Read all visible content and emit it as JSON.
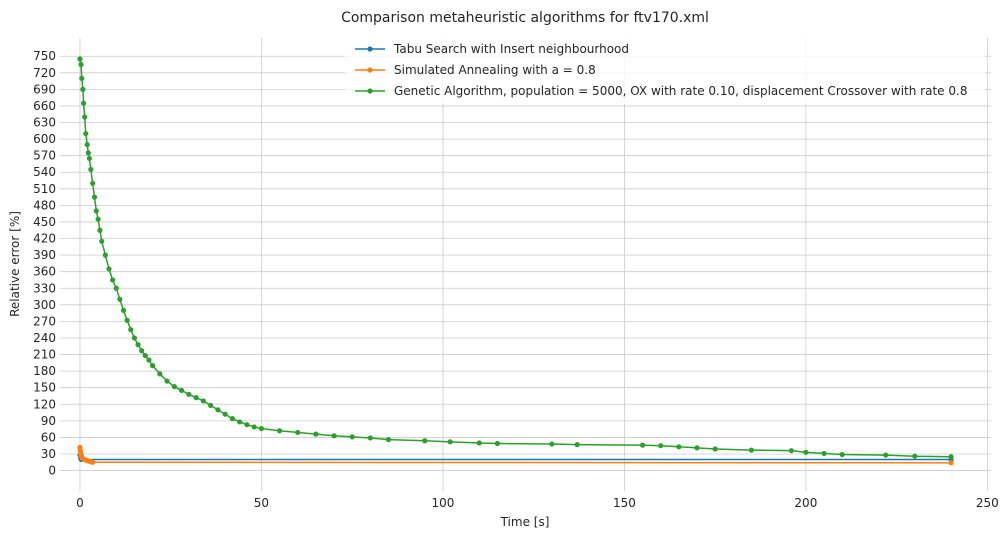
{
  "chart_data": {
    "type": "line",
    "title": "Comparison metaheuristic algorithms for ftv170.xml",
    "xlabel": "Time [s]",
    "ylabel": "Relative error [%]",
    "xlim": [
      -5.5,
      251
    ],
    "ylim": [
      -37,
      783
    ],
    "xticks": [
      0,
      50,
      100,
      150,
      200,
      250
    ],
    "yticks": [
      0,
      30,
      60,
      90,
      120,
      150,
      180,
      210,
      240,
      270,
      300,
      330,
      360,
      390,
      420,
      450,
      480,
      510,
      540,
      570,
      600,
      630,
      660,
      690,
      720,
      750
    ],
    "grid": true,
    "legend_position": "top-center",
    "series": [
      {
        "name": "Tabu Search with Insert neighbourhood",
        "color": "#1f77b4",
        "x": [
          0,
          0.2,
          0.4,
          240
        ],
        "y": [
          28,
          22,
          20,
          20
        ]
      },
      {
        "name": "Simulated Annealing with a = 0.8",
        "color": "#ff7f0e",
        "x": [
          0,
          0.1,
          0.2,
          0.3,
          0.4,
          0.5,
          0.7,
          1.0,
          1.3,
          1.6,
          2.0,
          2.5,
          3.0,
          3.5,
          240
        ],
        "y": [
          42,
          36,
          31,
          28,
          26,
          24,
          22,
          21,
          20,
          19,
          18,
          17,
          16,
          15,
          14
        ]
      },
      {
        "name": "Genetic Algorithm, population = 5000, OX with rate 0.10, displacement Crossover with rate 0.8",
        "color": "#2ca02c",
        "x": [
          0,
          0.3,
          0.5,
          0.8,
          1.0,
          1.3,
          1.6,
          2.0,
          2.3,
          2.6,
          3.0,
          3.5,
          4.0,
          4.5,
          5.0,
          5.5,
          6.0,
          7.0,
          8.0,
          9.0,
          10,
          11,
          12,
          13,
          14,
          15,
          16,
          17,
          18,
          19,
          20,
          22,
          24,
          26,
          28,
          30,
          32,
          34,
          36,
          38,
          40,
          42,
          44,
          46,
          48,
          50,
          55,
          60,
          65,
          70,
          75,
          80,
          85,
          95,
          102,
          110,
          115,
          130,
          137,
          155,
          160,
          165,
          170,
          175,
          185,
          196,
          200,
          205,
          210,
          222,
          230,
          240
        ],
        "y": [
          745,
          735,
          710,
          690,
          665,
          640,
          610,
          590,
          575,
          565,
          545,
          520,
          495,
          470,
          455,
          435,
          415,
          390,
          365,
          345,
          330,
          310,
          290,
          272,
          255,
          240,
          228,
          217,
          208,
          200,
          190,
          175,
          162,
          152,
          145,
          138,
          132,
          126,
          118,
          110,
          102,
          94,
          88,
          83,
          79,
          76,
          72,
          69,
          66,
          63,
          61,
          59,
          56,
          54,
          52,
          50,
          49,
          48,
          47,
          46,
          45,
          43,
          41,
          39,
          37,
          36,
          33,
          31,
          29,
          28,
          26,
          25
        ]
      }
    ]
  }
}
